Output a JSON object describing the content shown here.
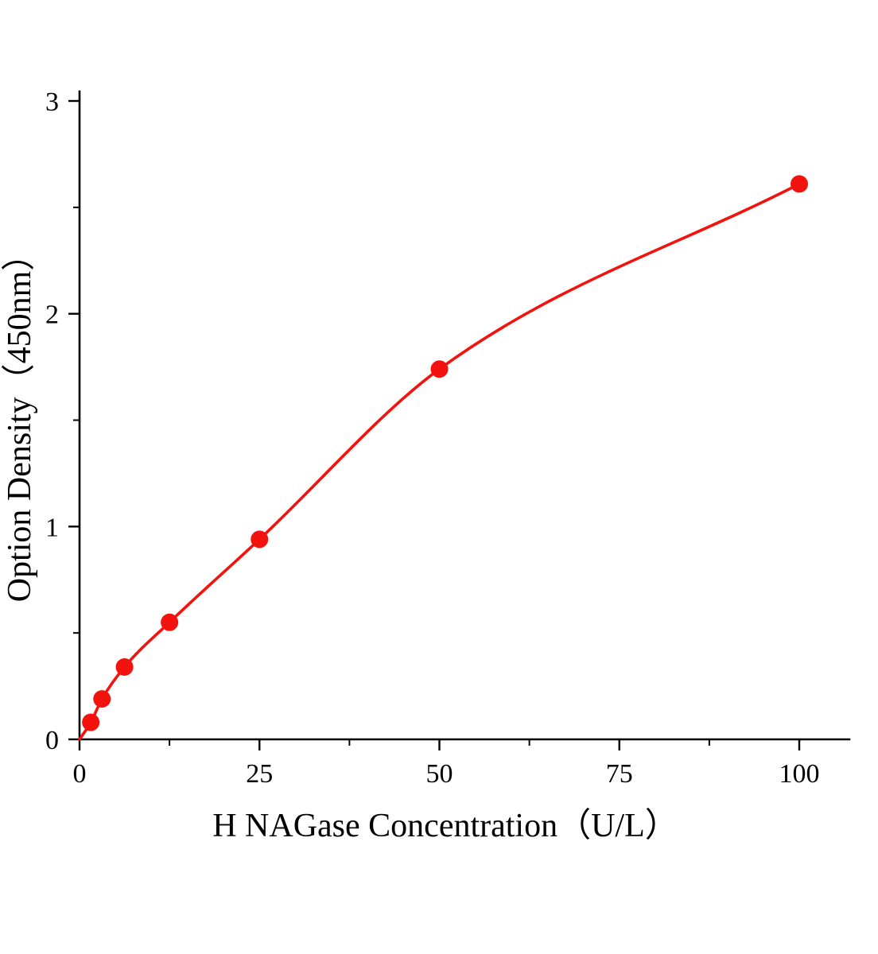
{
  "page": {
    "background": "#ffffff"
  },
  "chart_data": {
    "type": "scatter",
    "title": "",
    "xlabel": "H NAGase Concentration（U/L）",
    "ylabel": "Option Density（450nm）",
    "x_points": [
      1.56,
      3.12,
      6.25,
      12.5,
      25,
      50,
      100
    ],
    "y_points": [
      0.08,
      0.19,
      0.34,
      0.55,
      0.94,
      1.74,
      2.61
    ],
    "curve_x": [
      0,
      1.56,
      3.12,
      6.25,
      12.5,
      25,
      50,
      100
    ],
    "curve_y": [
      0,
      0.08,
      0.19,
      0.34,
      0.55,
      0.94,
      1.74,
      2.61
    ],
    "xticks": [
      0,
      25,
      50,
      75,
      100
    ],
    "xtick_labels": [
      "0",
      "25",
      "50",
      "75",
      "100"
    ],
    "yticks": [
      0,
      1,
      2,
      3
    ],
    "ytick_labels": [
      "0",
      "1",
      "2",
      "3"
    ],
    "x_minor_ticks": [
      12.5,
      37.5,
      62.5,
      87.5
    ],
    "y_minor_ticks": [
      0.5,
      1.5,
      2.5
    ],
    "xlim": [
      0,
      107
    ],
    "ylim": [
      0,
      3
    ],
    "grid": false,
    "legend": null,
    "marker_color": "#f2120e",
    "line_color": "#f2120e",
    "axis_color": "#000000",
    "marker_radius_px": 11
  }
}
